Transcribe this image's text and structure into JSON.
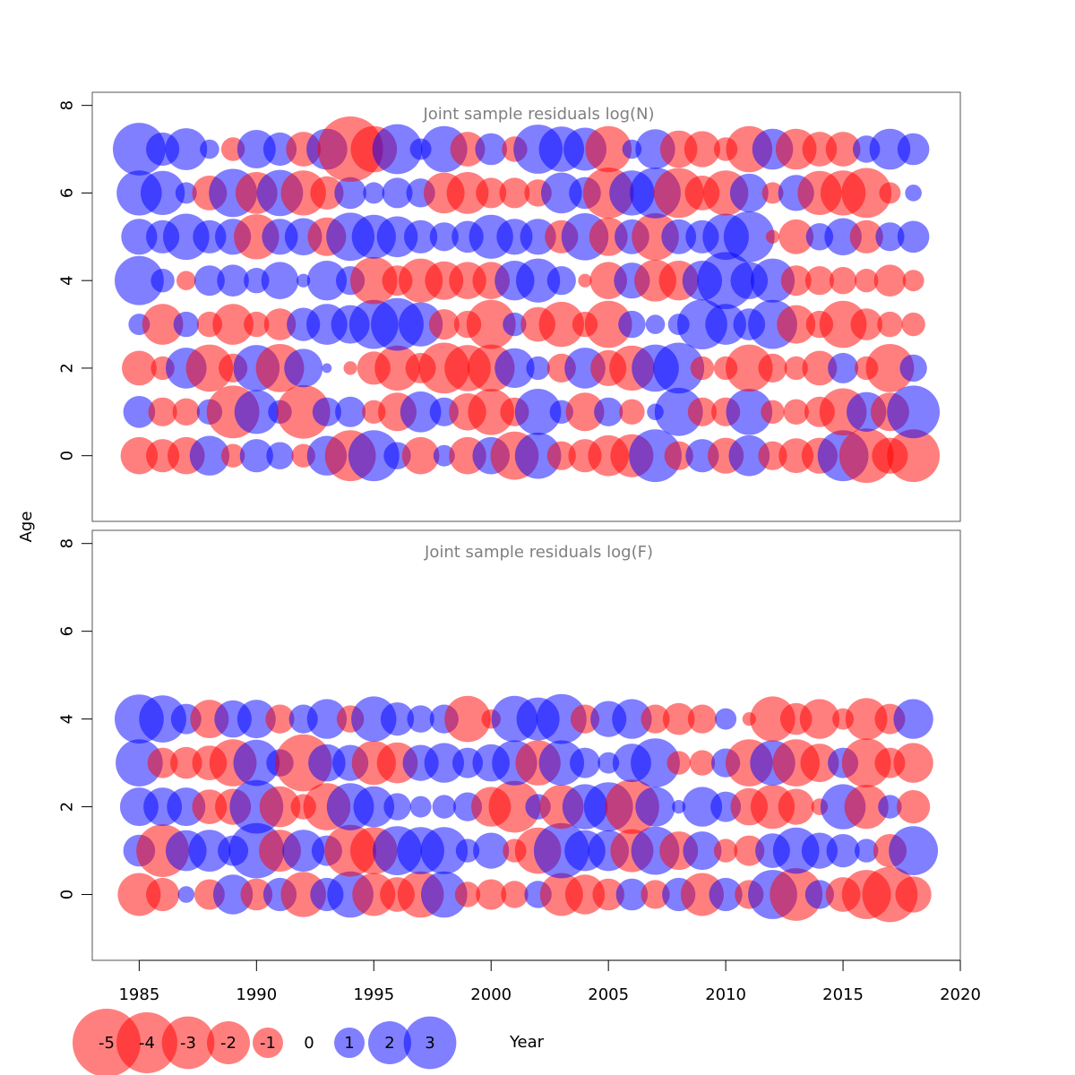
{
  "figure": {
    "ylabel": "Age",
    "xlabel": "Year",
    "xticks": [
      1985,
      1990,
      1995,
      2000,
      2005,
      2010,
      2015,
      2020
    ],
    "colors": {
      "negative": "#ff0000",
      "positive": "#0000ff",
      "opacity": 0.5,
      "frame": "#555555",
      "title": "#7f7f7f"
    }
  },
  "legend": {
    "items": [
      "-5",
      "-4",
      "-3",
      "-2",
      "-1",
      "0",
      "1",
      "2",
      "3"
    ]
  },
  "chart_data": [
    {
      "type": "scatter",
      "subtype": "bubble",
      "title": "Joint sample residuals log(N)",
      "xlabel": "Year",
      "ylabel": "Age",
      "xlim": [
        1983,
        2020
      ],
      "ylim": [
        -1.5,
        8.3
      ],
      "yticks": [
        0,
        2,
        4,
        6,
        8
      ],
      "years": [
        1985,
        1986,
        1987,
        1988,
        1989,
        1990,
        1991,
        1992,
        1993,
        1994,
        1995,
        1996,
        1997,
        1998,
        1999,
        2000,
        2001,
        2002,
        2003,
        2004,
        2005,
        2006,
        2007,
        2008,
        2009,
        2010,
        2011,
        2012,
        2013,
        2014,
        2015,
        2016,
        2017,
        2018
      ],
      "ages": [
        0,
        1,
        2,
        3,
        4,
        5,
        6,
        7
      ],
      "residuals": [
        [
          -1.5,
          -1.2,
          -1.5,
          1.7,
          -0.6,
          1.2,
          0.8,
          -0.6,
          1.7,
          -2.8,
          2.8,
          0.8,
          -1.5,
          0.5,
          -1.5,
          1.5,
          -2.5,
          2.3,
          -0.9,
          -1.2,
          -1.8,
          -2.0,
          3.0,
          -0.9,
          1.2,
          -1.4,
          1.8,
          -0.9,
          -1.3,
          -1.4,
          2.8,
          -3.2,
          -1.4,
          -3.0
        ],
        [
          1.1,
          -0.9,
          -0.8,
          0.7,
          -3.0,
          2.1,
          0.6,
          -3.1,
          0.9,
          1.0,
          -0.6,
          -1.6,
          1.8,
          0.9,
          -1.5,
          -2.3,
          -0.9,
          2.3,
          0.6,
          -1.6,
          0.9,
          -0.7,
          0.3,
          2.5,
          -0.9,
          -0.9,
          2.3,
          -0.6,
          -0.7,
          -1.0,
          -2.4,
          1.7,
          -1.6,
          3.0
        ],
        [
          -1.3,
          -0.6,
          1.8,
          -2.4,
          -0.9,
          2.3,
          -2.5,
          1.6,
          0.1,
          -0.2,
          -1.2,
          -2.2,
          -1.0,
          -2.8,
          -2.3,
          -2.4,
          1.7,
          0.6,
          -0.9,
          1.8,
          -1.4,
          -2.2,
          2.4,
          2.8,
          -0.6,
          -0.6,
          -2.4,
          -0.9,
          -0.6,
          -1.3,
          1.0,
          -0.6,
          -2.5,
          0.8
        ],
        [
          0.5,
          -1.8,
          0.7,
          -0.7,
          -1.8,
          -0.7,
          -1.1,
          1.2,
          1.8,
          1.6,
          2.6,
          3.0,
          2.1,
          -1.0,
          -0.8,
          -2.6,
          0.6,
          -1.3,
          -2.2,
          -0.7,
          -2.4,
          0.8,
          0.4,
          0.5,
          2.7,
          1.8,
          1.1,
          2.6,
          -1.6,
          -0.8,
          -2.4,
          -1.1,
          -0.7,
          -0.6
        ],
        [
          2.6,
          0.6,
          -0.4,
          1.0,
          1.1,
          0.7,
          1.5,
          0.2,
          1.7,
          0.9,
          -2.4,
          -1.0,
          -2.1,
          -1.6,
          -1.5,
          -1.5,
          1.7,
          2.1,
          0.9,
          -0.2,
          -1.5,
          1.4,
          -1.9,
          -1.7,
          1.7,
          3.5,
          1.5,
          2.1,
          -1.0,
          -0.9,
          -0.8,
          -0.6,
          -1.1,
          -0.5
        ],
        [
          1.4,
          1.2,
          2.3,
          1.2,
          1.4,
          -2.2,
          1.4,
          1.5,
          -1.6,
          2.5,
          2.1,
          1.8,
          1.2,
          0.9,
          1.1,
          2.1,
          1.4,
          1.4,
          -1.2,
          2.4,
          -1.6,
          1.3,
          -2.4,
          1.3,
          1.2,
          2.3,
          2.8,
          -0.2,
          -1.3,
          0.8,
          1.5,
          -1.2,
          0.9,
          1.1
        ],
        [
          2.2,
          2.1,
          0.5,
          -1.3,
          2.5,
          -1.9,
          2.3,
          -2.2,
          -1.2,
          1.1,
          0.5,
          1.0,
          0.9,
          -1.8,
          -1.9,
          -1.0,
          -1.0,
          -0.8,
          1.8,
          1.1,
          -2.8,
          2.2,
          2.8,
          -2.7,
          -1.3,
          -2.2,
          1.6,
          -0.5,
          1.4,
          -2.1,
          -2.2,
          -2.7,
          -0.5,
          0.3
        ],
        [
          3.0,
          1.2,
          1.9,
          0.4,
          -0.6,
          1.6,
          1.2,
          -1.3,
          1.8,
          -4.6,
          -2.3,
          2.7,
          0.5,
          2.3,
          -1.3,
          1.1,
          -0.7,
          2.6,
          2.2,
          2.0,
          -2.3,
          0.4,
          1.7,
          -1.5,
          -1.4,
          -0.6,
          -2.3,
          1.8,
          -1.8,
          -1.3,
          -1.3,
          0.8,
          1.8,
          1.1
        ]
      ]
    },
    {
      "type": "scatter",
      "subtype": "bubble",
      "title": "Joint sample residuals log(F)",
      "xlabel": "Year",
      "ylabel": "Age",
      "xlim": [
        1983,
        2020
      ],
      "ylim": [
        -1.5,
        8.3
      ],
      "yticks": [
        0,
        2,
        4,
        6,
        8
      ],
      "years": [
        1985,
        1986,
        1987,
        1988,
        1989,
        1990,
        1991,
        1992,
        1993,
        1994,
        1995,
        1996,
        1997,
        1998,
        1999,
        2000,
        2001,
        2002,
        2003,
        2004,
        2005,
        2006,
        2007,
        2008,
        2009,
        2010,
        2011,
        2012,
        2013,
        2014,
        2015,
        2016,
        2017,
        2018
      ],
      "ages": [
        0,
        1,
        2,
        3,
        4
      ],
      "residuals": [
        [
          -2.0,
          -1.2,
          0.3,
          -1.0,
          1.7,
          -1.1,
          1.2,
          -2.2,
          1.2,
          2.3,
          -2.0,
          -1.3,
          -2.3,
          2.3,
          -0.7,
          -1.0,
          -0.8,
          0.8,
          -2.0,
          -1.7,
          -1.1,
          1.1,
          -0.9,
          1.2,
          -2.0,
          1.2,
          -0.9,
          2.6,
          -3.0,
          0.9,
          -1.3,
          -2.6,
          -3.3,
          -1.4
        ],
        [
          1.1,
          -3.0,
          1.8,
          1.9,
          1.0,
          3.3,
          -1.9,
          1.9,
          1.0,
          -2.9,
          -2.4,
          2.6,
          2.4,
          2.4,
          0.6,
          1.4,
          -0.6,
          -2.3,
          3.3,
          1.8,
          1.8,
          -2.0,
          2.5,
          -1.6,
          1.6,
          -0.6,
          -1.0,
          1.3,
          2.3,
          1.4,
          1.2,
          0.6,
          -1.2,
          2.6
        ],
        [
          1.6,
          1.6,
          1.6,
          -1.3,
          -1.4,
          3.1,
          -1.8,
          -0.7,
          -2.4,
          2.4,
          1.8,
          0.8,
          0.5,
          0.6,
          0.9,
          -1.7,
          -2.9,
          0.7,
          -2.1,
          2.2,
          2.6,
          -3.2,
          1.7,
          0.2,
          1.7,
          1.0,
          -1.5,
          -2.1,
          -1.4,
          -0.3,
          2.2,
          -2.1,
          0.6,
          -1.2
        ],
        [
          2.4,
          -1.0,
          -1.1,
          -1.3,
          -2.4,
          2.3,
          0.8,
          -3.5,
          1.5,
          1.4,
          -2.1,
          -1.8,
          1.4,
          1.7,
          1.0,
          1.5,
          2.2,
          -2.2,
          2.2,
          1.0,
          0.5,
          1.6,
          2.6,
          -0.6,
          -0.7,
          0.9,
          -2.4,
          2.2,
          -2.4,
          -1.6,
          1.0,
          -2.6,
          -1.0,
          -1.7
        ],
        [
          2.6,
          2.4,
          1.0,
          -1.6,
          1.5,
          1.6,
          -0.9,
          0.9,
          1.7,
          -0.8,
          2.2,
          1.2,
          0.8,
          0.9,
          -2.3,
          -0.4,
          2.3,
          2.0,
          2.7,
          -0.9,
          1.4,
          1.7,
          -0.9,
          -1.1,
          -0.9,
          0.5,
          -0.2,
          -2.2,
          -1.1,
          -1.7,
          -0.5,
          -1.9,
          -1.0,
          1.7
        ]
      ]
    }
  ]
}
